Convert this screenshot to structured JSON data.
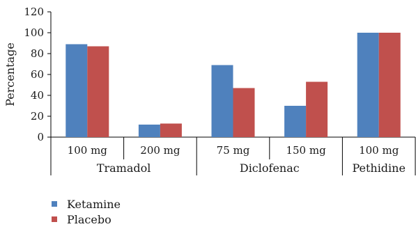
{
  "chart_data": {
    "type": "bar",
    "ylabel": "Percentage",
    "ylim": [
      0,
      120
    ],
    "yticks": [
      0,
      20,
      40,
      60,
      80,
      100,
      120
    ],
    "categories": [
      "100 mg",
      "200 mg",
      "75 mg",
      "150 mg",
      "100 mg"
    ],
    "groups": [
      {
        "label": "Tramadol",
        "span": [
          0,
          1
        ]
      },
      {
        "label": "Diclofenac",
        "span": [
          2,
          3
        ]
      },
      {
        "label": "Pethidine",
        "span": [
          4,
          4
        ]
      }
    ],
    "series": [
      {
        "name": "Ketamine",
        "color": "#4f81bd",
        "values": [
          89,
          12,
          69,
          30,
          100
        ]
      },
      {
        "name": "Placebo",
        "color": "#c0504d",
        "values": [
          87,
          13,
          47,
          53,
          100
        ]
      }
    ],
    "grid": false,
    "legend_position": "bottom-left"
  }
}
